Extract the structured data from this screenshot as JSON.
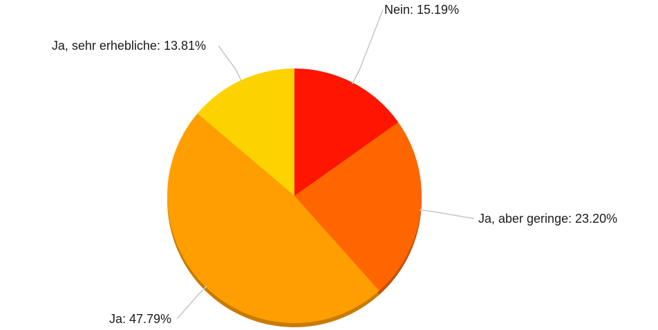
{
  "chart_data": {
    "type": "pie",
    "start_angle_deg": 0,
    "direction": "clockwise",
    "slices": [
      {
        "label": "Nein",
        "value": 15.19,
        "display": "15.19%",
        "color": "#ff1500"
      },
      {
        "label": "Ja, aber geringe",
        "value": 23.2,
        "display": "23.20%",
        "color": "#ff6600"
      },
      {
        "label": "Ja",
        "value": 47.79,
        "display": "47.79%",
        "color": "#ff9e00"
      },
      {
        "label": "Ja, sehr erhebliche",
        "value": 13.81,
        "display": "13.81%",
        "color": "#fcd200"
      }
    ]
  }
}
